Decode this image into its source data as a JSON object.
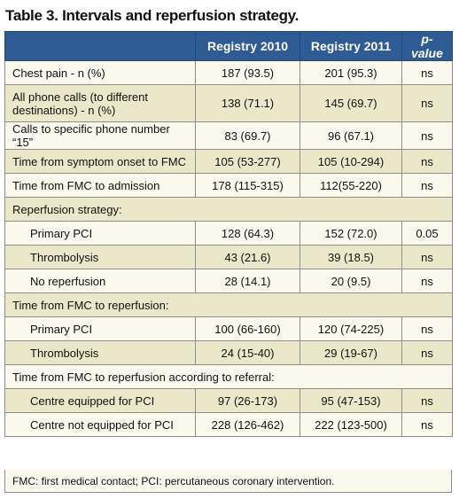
{
  "title": "Table 3. Intervals and reperfusion strategy.",
  "headers": {
    "col0": "",
    "col1": "Registry 2010",
    "col2": "Registry 2011",
    "col3": "p-value"
  },
  "rows": {
    "chest_pain": {
      "label": "Chest pain - n (%)",
      "v2010": "187 (93.5)",
      "v2011": "201 (95.3)",
      "p": "ns"
    },
    "phone_calls": {
      "label": "All phone calls (to different destinations) - n (%)",
      "v2010": "138 (71.1)",
      "v2011": "145 (69.7)",
      "p": "ns"
    },
    "calls_15": {
      "label": "Calls to specific phone number “15”",
      "v2010": "83 (69.7)",
      "v2011": "96 (67.1)",
      "p": "ns"
    },
    "onset_fmc": {
      "label": "Time from symptom onset to FMC",
      "v2010": "105 (53-277)",
      "v2011": "105 (10-294)",
      "p": "ns"
    },
    "fmc_admission": {
      "label": "Time from FMC to admission",
      "v2010": "178 (115-315)",
      "v2011": "112(55-220)",
      "p": "ns"
    },
    "reperfusion_strategy": {
      "label": "Reperfusion strategy:"
    },
    "rs_primary_pci": {
      "label": "Primary PCI",
      "v2010": "128 (64.3)",
      "v2011": "152 (72.0)",
      "p": "0.05"
    },
    "rs_thrombolysis": {
      "label": "Thrombolysis",
      "v2010": "43 (21.6)",
      "v2011": "39 (18.5)",
      "p": "ns"
    },
    "rs_none": {
      "label": "No reperfusion",
      "v2010": "28 (14.1)",
      "v2011": "20 (9.5)",
      "p": "ns"
    },
    "fmc_reperfusion": {
      "label": "Time from FMC to reperfusion:"
    },
    "fr_primary_pci": {
      "label": "Primary PCI",
      "v2010": "100 (66-160)",
      "v2011": "120 (74-225)",
      "p": "ns"
    },
    "fr_thrombolysis": {
      "label": "Thrombolysis",
      "v2010": "24 (15-40)",
      "v2011": "29 (19-67)",
      "p": "ns"
    },
    "fmc_referral": {
      "label": "Time from FMC to reperfusion according to referral:"
    },
    "ref_equipped": {
      "label": "Centre equipped for PCI",
      "v2010": "97 (26-173)",
      "v2011": "95 (47-153)",
      "p": "ns"
    },
    "ref_not_equipped": {
      "label": "Centre not equipped for PCI",
      "v2010": "228 (126-462)",
      "v2011": "222 (123-500)",
      "p": "ns"
    }
  },
  "footnote": "FMC: first medical contact; PCI: percutaneous coronary intervention.",
  "colors": {
    "header_bg": "#2f5b94",
    "row_light": "#fbf9ee",
    "row_dark": "#ebe7c9"
  }
}
